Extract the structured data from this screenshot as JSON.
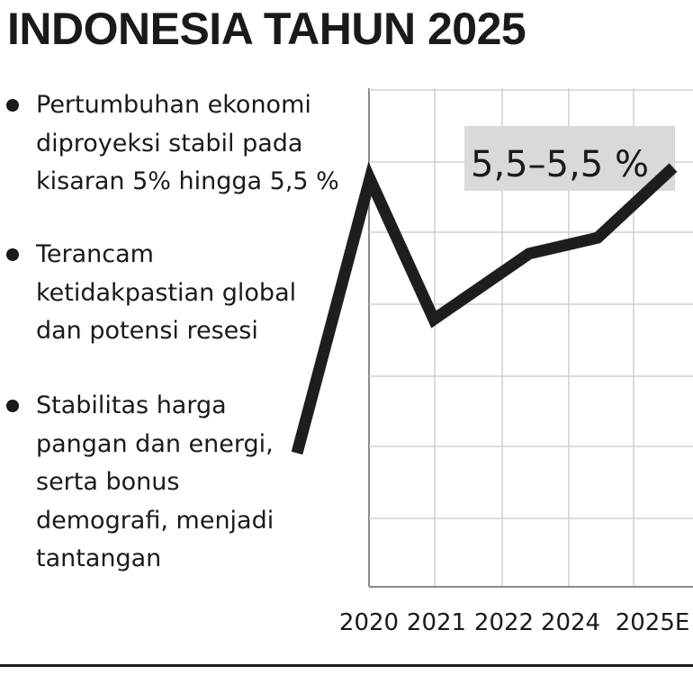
{
  "title": "INDONESIA TAHUN 2025",
  "bullets": [
    "Pertumbuhan ekonomi\ndiproyeksi stabil pada\nkisaran 5% hingga 5,5 %",
    "Terancam\nketidakpastian global\ndan potensi resesi",
    "Stabilitas harga\npangan dan energi,\nserta bonus\ndemografi, menjadi\ntantangan"
  ],
  "chart_data": {
    "type": "line",
    "categories": [
      "2020",
      "2021",
      "2022",
      "2024",
      "2025E"
    ],
    "annotation": "5,5–5,5 %",
    "grid": true,
    "colors": {
      "line": "#1e1e1e",
      "grid": "#cfcfcf",
      "label_box": "#d9d9d9"
    },
    "series": [
      {
        "values": [
          8.0,
          1.8,
          4.7,
          5.4,
          8.5
        ]
      }
    ],
    "lead_in_start": -4.1,
    "ylim": [
      -10,
      12
    ]
  }
}
